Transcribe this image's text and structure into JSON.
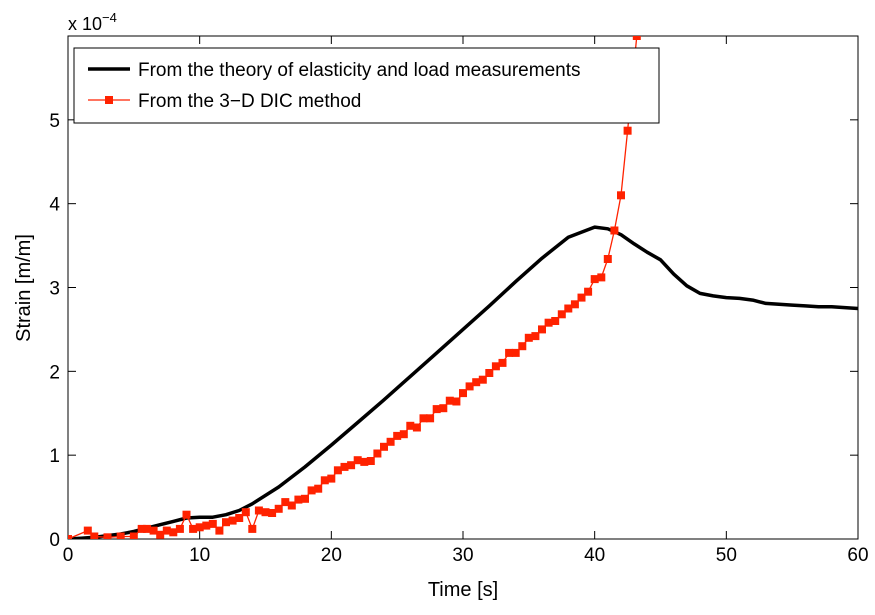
{
  "chart_data": {
    "type": "line",
    "title": "",
    "xlabel": "Time [s]",
    "ylabel": "Strain [m/m]",
    "y_multiplier_label": "x 10",
    "y_multiplier_exponent": "−4",
    "xlim": [
      0,
      60
    ],
    "ylim": [
      0,
      6
    ],
    "xticks": [
      0,
      10,
      20,
      30,
      40,
      50,
      60
    ],
    "yticks": [
      0,
      1,
      2,
      3,
      4,
      5
    ],
    "grid": false,
    "legend_position": "top-left",
    "series": [
      {
        "name": "From the theory of elasticity and load measurements",
        "color": "#000000",
        "style": "thick-line",
        "x": [
          0,
          1,
          2,
          3,
          4,
          5,
          6,
          7,
          8,
          9,
          10,
          11,
          12,
          13,
          14,
          16,
          18,
          20,
          22,
          24,
          26,
          28,
          30,
          32,
          34,
          36,
          38,
          40,
          41,
          42,
          43,
          44,
          45,
          46,
          47,
          48,
          49,
          50,
          51,
          52,
          52.5,
          53,
          54,
          55,
          56,
          57,
          58,
          59,
          60
        ],
        "y": [
          0,
          0.01,
          0.02,
          0.04,
          0.06,
          0.09,
          0.13,
          0.17,
          0.21,
          0.25,
          0.26,
          0.26,
          0.29,
          0.34,
          0.42,
          0.62,
          0.86,
          1.12,
          1.39,
          1.66,
          1.94,
          2.22,
          2.5,
          2.78,
          3.07,
          3.35,
          3.6,
          3.72,
          3.7,
          3.63,
          3.52,
          3.42,
          3.33,
          3.16,
          3.02,
          2.93,
          2.9,
          2.88,
          2.87,
          2.85,
          2.83,
          2.81,
          2.8,
          2.79,
          2.78,
          2.77,
          2.77,
          2.76,
          2.75
        ]
      },
      {
        "name": "From the 3−D DIC method",
        "color": "#ff2200",
        "style": "line-square-markers",
        "x": [
          0,
          1.5,
          2,
          3,
          4,
          5,
          5.6,
          6,
          6.5,
          7,
          7.5,
          8,
          8.5,
          9,
          9.5,
          10,
          10.5,
          11,
          11.5,
          12,
          12.5,
          13,
          13.5,
          14,
          14.5,
          15,
          15.5,
          16,
          16.5,
          17,
          17.5,
          18,
          18.5,
          19,
          19.5,
          20,
          20.5,
          21,
          21.5,
          22,
          22.5,
          23,
          23.5,
          24,
          24.5,
          25,
          25.5,
          26,
          26.5,
          27,
          27.5,
          28,
          28.5,
          29,
          29.5,
          30,
          30.5,
          31,
          31.5,
          32,
          32.5,
          33,
          33.5,
          34,
          34.5,
          35,
          35.5,
          36,
          36.5,
          37,
          37.5,
          38,
          38.5,
          39,
          39.5,
          40,
          40.5,
          41,
          41.5,
          42,
          42.5,
          43.2
        ],
        "y": [
          0,
          0.1,
          0.03,
          0.02,
          0.03,
          0.03,
          0.12,
          0.12,
          0.1,
          0.05,
          0.1,
          0.08,
          0.12,
          0.29,
          0.12,
          0.14,
          0.16,
          0.18,
          0.1,
          0.2,
          0.22,
          0.25,
          0.32,
          0.12,
          0.34,
          0.32,
          0.31,
          0.36,
          0.44,
          0.4,
          0.47,
          0.48,
          0.58,
          0.6,
          0.7,
          0.72,
          0.82,
          0.86,
          0.88,
          0.94,
          0.92,
          0.93,
          1.02,
          1.1,
          1.16,
          1.23,
          1.25,
          1.35,
          1.33,
          1.44,
          1.44,
          1.55,
          1.56,
          1.65,
          1.64,
          1.74,
          1.82,
          1.87,
          1.9,
          1.98,
          2.06,
          2.1,
          2.22,
          2.22,
          2.3,
          2.4,
          2.42,
          2.5,
          2.58,
          2.6,
          2.68,
          2.75,
          2.8,
          2.88,
          2.95,
          3.1,
          3.12,
          3.34,
          3.68,
          4.1,
          4.87,
          6.0
        ]
      }
    ]
  }
}
